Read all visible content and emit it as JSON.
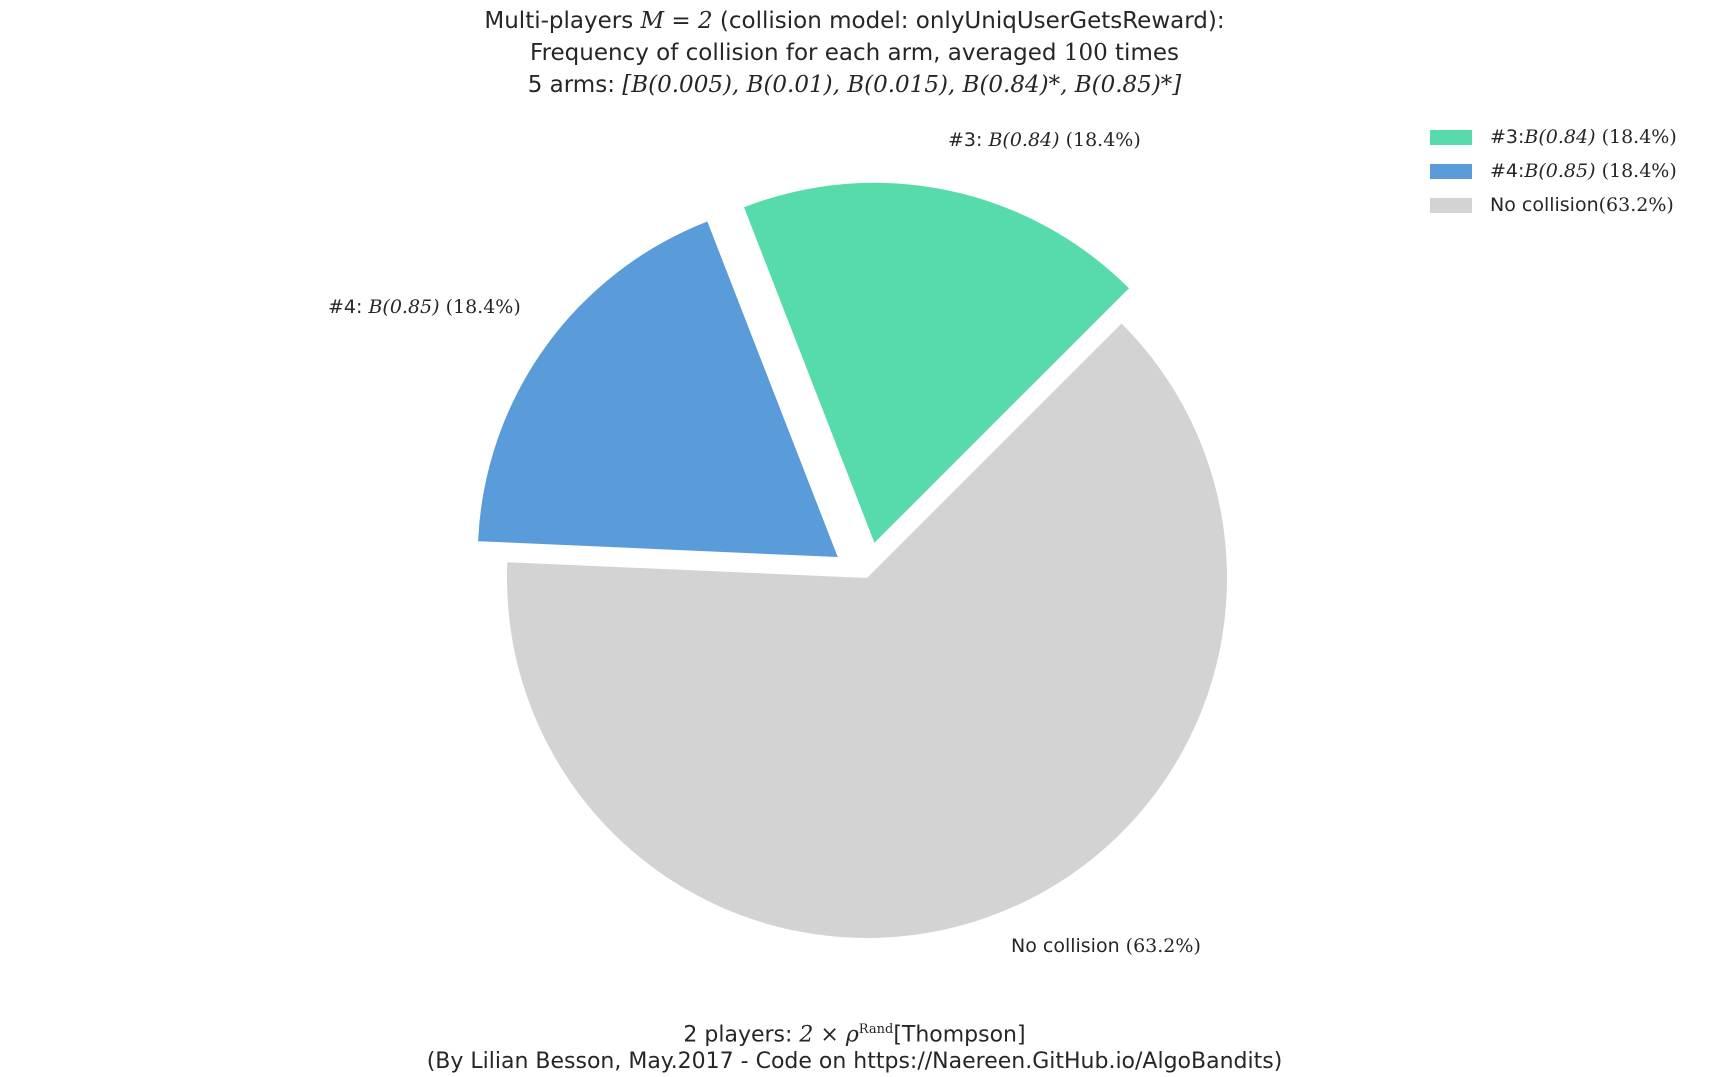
{
  "chart_data": {
    "type": "pie",
    "title": {
      "line1_pre": "Multi-players ",
      "line1_math": "M = 2",
      "line1_post": " (collision model: onlyUniqUserGetsReward):",
      "line2_pre": "Frequency of collision for each arm, averaged ",
      "line2_math": "100",
      "line2_post": " times",
      "line3_pre": "5 arms: ",
      "line3_math": "[B(0.005), B(0.01), B(0.015), B(0.84)*, B(0.85)*]"
    },
    "xlabel": {
      "line1_pre": "2 players: ",
      "line1_math": "2 × ρ",
      "line1_sup": "Rand",
      "line1_post": "[Thompson]",
      "line2": "(By Lilian Besson, May.2017 - Code on https://Naereen.GitHub.io/AlgoBandits)"
    },
    "slices": [
      {
        "id": "arm3",
        "label_pre": "#3: ",
        "label_math": "B(0.84)",
        "pct_text": "(18.4%)",
        "value": 18.4,
        "color": "#58dbaa"
      },
      {
        "id": "arm4",
        "label_pre": "#4: ",
        "label_math": "B(0.85)",
        "pct_text": "(18.4%)",
        "value": 18.4,
        "color": "#5a9bd9"
      },
      {
        "id": "none",
        "label_pre": "No collision ",
        "label_math": "",
        "pct_text": "(63.2%)",
        "value": 63.2,
        "color": "#d3d3d3"
      }
    ],
    "legend_position": "top-right"
  }
}
